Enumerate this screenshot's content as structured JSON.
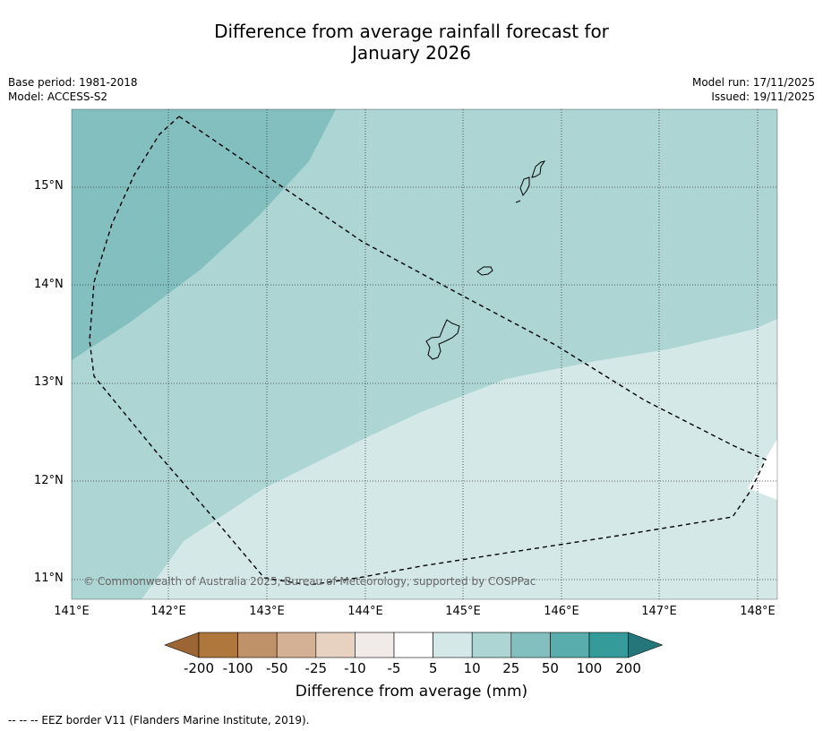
{
  "title_line1": "Difference from average rainfall forecast for",
  "title_line2": "January 2026",
  "base_period": "Base period: 1981-2018",
  "model": "Model: ACCESS-S2",
  "model_run": "Model run: 17/11/2025",
  "issued": "Issued: 19/11/2025",
  "lat_ticks": [
    "15°N",
    "14°N",
    "13°N",
    "12°N",
    "11°N"
  ],
  "lon_ticks": [
    "141°E",
    "142°E",
    "143°E",
    "144°E",
    "145°E",
    "146°E",
    "147°E",
    "148°E"
  ],
  "copyright": "© Commonwealth of Australia 2025, Bureau of Meteorology, supported by COSPPac",
  "colorbar": {
    "labels": [
      "-200",
      "-100",
      "-50",
      "-25",
      "-10",
      "-5",
      "5",
      "10",
      "25",
      "50",
      "100",
      "200"
    ],
    "colors": [
      "#9c6535",
      "#b0773d",
      "#c09269",
      "#d4b194",
      "#e7d1c0",
      "#f0ebe8",
      "#ffffff",
      "#d4e8e7",
      "#acd5d4",
      "#84bfbf",
      "#5aadad",
      "#359b9a",
      "#25767a"
    ],
    "title": "Difference from average (mm)"
  },
  "footnote": "--  --  -- EEZ border V11 (Flanders Marine Institute, 2019).",
  "map_colors": {
    "band_5_10": "#d4e8e7",
    "band_10_25": "#acd5d4",
    "band_25_50": "#84bfbf",
    "white": "#ffffff"
  }
}
